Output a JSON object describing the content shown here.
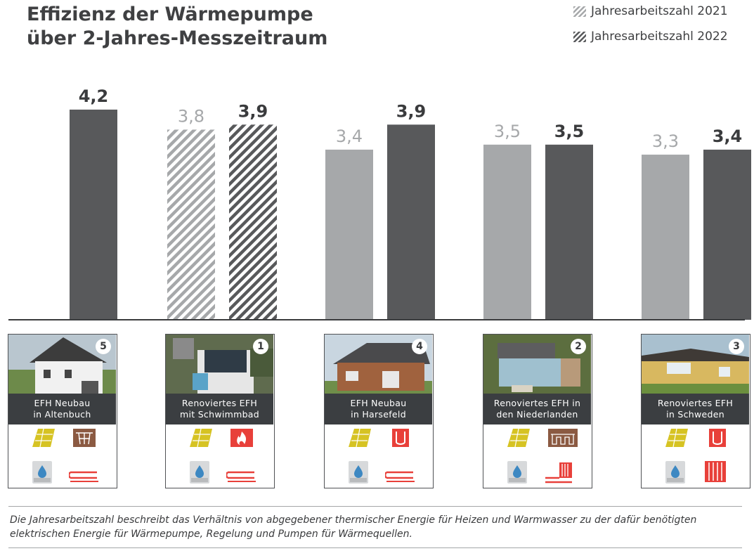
{
  "title_line1": "Effizienz der Wärmepumpe",
  "title_line2": "über 2-Jahres-Messzeitraum",
  "legend": [
    {
      "label": "Jahresarbeitszahl 2021"
    },
    {
      "label": "Jahresarbeitszahl 2022"
    }
  ],
  "colors": {
    "bar_2021": "#a6a8aa",
    "bar_2022": "#58595b",
    "label_2021": "#a6a8aa",
    "label_2022": "#3a3b3d",
    "card_label_bg": "#3b3e41",
    "solar_icon": "#d6c323",
    "heat_icon_red": "#e8403a",
    "heat_icon_brown": "#8b5a42"
  },
  "chart_data": {
    "type": "bar",
    "categories": [
      "EFH Neubau in Altenbuch",
      "Renoviertes EFH mit Schwimmbad",
      "EFH Neubau in Harsefeld",
      "Renoviertes EFH in den Niederlanden",
      "Renoviertes EFH in Schweden"
    ],
    "series": [
      {
        "name": "Jahresarbeitszahl 2021",
        "values": [
          null,
          3.8,
          3.4,
          3.5,
          3.3
        ],
        "labels": [
          "",
          "3,8",
          "3,4",
          "3,5",
          "3,3"
        ]
      },
      {
        "name": "Jahresarbeitszahl 2022",
        "values": [
          4.2,
          3.9,
          3.9,
          3.5,
          3.4
        ],
        "labels": [
          "4,2",
          "3,9",
          "3,9",
          "3,5",
          "3,4"
        ]
      }
    ],
    "hatched_category_index": 1,
    "ylim": [
      0,
      4.4
    ]
  },
  "cards": [
    {
      "number": "5",
      "line1": "EFH Neubau",
      "line2": "in Altenbuch",
      "photo": "house-white",
      "icons": [
        "solar-panel-icon",
        "ground-probe-icon",
        "water-tank-icon",
        "floor-heating-icon"
      ]
    },
    {
      "number": "1",
      "line1": "Renoviertes EFH",
      "line2": "mit Schwimmbad",
      "photo": "house-aerial-pool",
      "icons": [
        "solar-panel-icon",
        "flame-icon",
        "water-tank-icon",
        "floor-heating-icon"
      ]
    },
    {
      "number": "4",
      "line1": "EFH Neubau",
      "line2": "in Harsefeld",
      "photo": "house-brick",
      "icons": [
        "solar-panel-icon",
        "heat-pump-tube-icon",
        "water-tank-icon",
        "floor-heating-icon"
      ]
    },
    {
      "number": "2",
      "line1": "Renoviertes EFH in",
      "line2": "den Niederlanden",
      "photo": "house-aerial-greenhouse",
      "icons": [
        "solar-panel-icon",
        "ground-collector-icon",
        "water-tank-icon",
        "radiator-floor-icon"
      ]
    },
    {
      "number": "3",
      "line1": "Renoviertes EFH",
      "line2": "in Schweden",
      "photo": "house-yellow",
      "icons": [
        "solar-panel-icon",
        "heat-pump-tube-icon",
        "water-tank-icon",
        "radiator-icon"
      ]
    }
  ],
  "footnote_line1": "Die Jahresarbeitszahl beschreibt das Verhältnis von abgegebener thermischer Energie für Heizen und Warmwasser zu der dafür benötigten",
  "footnote_line2": "elektrischen Energie für Wärmepumpe, Regelung und Pumpen für Wärmequellen."
}
